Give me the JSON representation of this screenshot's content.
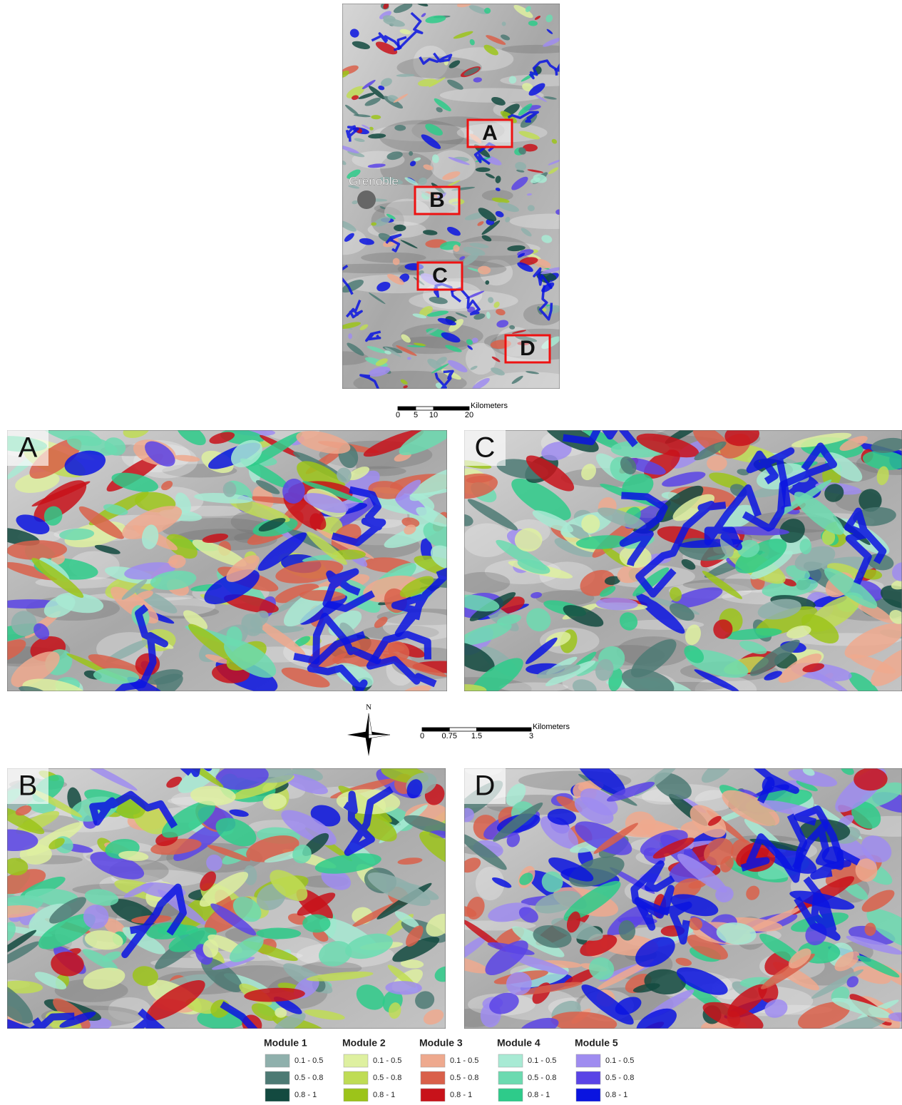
{
  "overview": {
    "city": "Grenoble",
    "boxes": [
      "A",
      "B",
      "C",
      "D"
    ],
    "scale_bar": {
      "ticks": [
        0,
        5,
        10,
        20
      ],
      "unit": "Kilometers"
    }
  },
  "panels": [
    "A",
    "C",
    "B",
    "D"
  ],
  "north": "N",
  "scale_bar": {
    "ticks": [
      0,
      0.75,
      1.5,
      3
    ],
    "unit": "Kilometers"
  },
  "legend": [
    {
      "title": "Module 1",
      "items": [
        {
          "label": "0.1 - 0.5",
          "color": "#8fb0ac"
        },
        {
          "label": "0.5 - 0.8",
          "color": "#4d7a74"
        },
        {
          "label": "0.8 - 1",
          "color": "#134a40"
        }
      ]
    },
    {
      "title": "Module 2",
      "items": [
        {
          "label": "0.1 - 0.5",
          "color": "#def0a0"
        },
        {
          "label": "0.5 - 0.8",
          "color": "#bfdc55"
        },
        {
          "label": "0.8 - 1",
          "color": "#9cc41a"
        }
      ]
    },
    {
      "title": "Module 3",
      "items": [
        {
          "label": "0.1 - 0.5",
          "color": "#eea98e"
        },
        {
          "label": "0.5 - 0.8",
          "color": "#d9604a"
        },
        {
          "label": "0.8 - 1",
          "color": "#c8121a"
        }
      ]
    },
    {
      "title": "Module 4",
      "items": [
        {
          "label": "0.1 - 0.5",
          "color": "#a8ead4"
        },
        {
          "label": "0.5 - 0.8",
          "color": "#6cdab0"
        },
        {
          "label": "0.8 - 1",
          "color": "#2ecb8a"
        }
      ]
    },
    {
      "title": "Module 5",
      "items": [
        {
          "label": "0.1 - 0.5",
          "color": "#9f8cf0"
        },
        {
          "label": "0.5 - 0.8",
          "color": "#5a44e6"
        },
        {
          "label": "0.8 - 1",
          "color": "#0a14e0"
        }
      ]
    }
  ]
}
